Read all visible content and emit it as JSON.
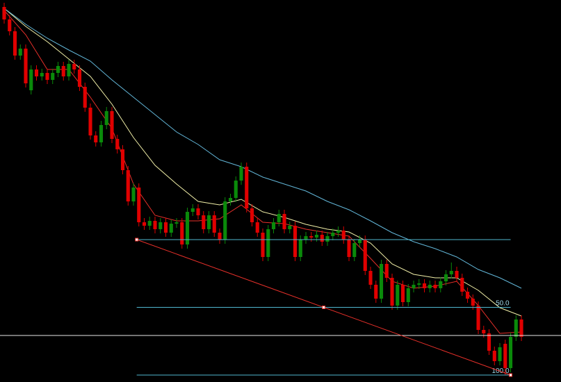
{
  "chart_data": {
    "type": "candlestick",
    "xlim": [
      -0.774,
      103.35
    ],
    "ylim": [
      0,
      550
    ],
    "up_color": "#0a8a0a",
    "down_color": "#e00000",
    "open": [
      540,
      522,
      505,
      470,
      480,
      420,
      450,
      440,
      445,
      435,
      445,
      455,
      440,
      458,
      450,
      425,
      395,
      355,
      345,
      370,
      390,
      350,
      335,
      305,
      260,
      280,
      230,
      225,
      232,
      220,
      230,
      215,
      228,
      230,
      198,
      245,
      250,
      240,
      220,
      240,
      215,
      205,
      260,
      265,
      290,
      310,
      250,
      230,
      215,
      180,
      220,
      230,
      242,
      220,
      225,
      180,
      205,
      210,
      208,
      212,
      202,
      210,
      215,
      218,
      205,
      180,
      200,
      205,
      160,
      140,
      120,
      170,
      150,
      110,
      140,
      115,
      135,
      140,
      142,
      135,
      140,
      135,
      145,
      155,
      160,
      150,
      130,
      120,
      110,
      75,
      70,
      45,
      30,
      55,
      20,
      65,
      90
    ],
    "high": [
      546,
      528,
      511,
      486,
      486,
      456,
      456,
      451,
      451,
      451,
      461,
      461,
      464,
      464,
      456,
      431,
      401,
      361,
      376,
      396,
      396,
      356,
      341,
      311,
      286,
      286,
      236,
      238,
      238,
      236,
      236,
      234,
      236,
      236,
      251,
      256,
      256,
      246,
      246,
      246,
      221,
      266,
      271,
      296,
      316,
      316,
      256,
      236,
      221,
      226,
      236,
      248,
      248,
      231,
      231,
      211,
      216,
      216,
      218,
      218,
      216,
      221,
      224,
      224,
      211,
      206,
      211,
      211,
      166,
      146,
      176,
      176,
      156,
      146,
      146,
      141,
      146,
      148,
      148,
      146,
      146,
      151,
      161,
      172,
      166,
      156,
      136,
      126,
      116,
      81,
      76,
      51,
      56,
      61,
      71,
      96,
      96
    ],
    "low": [
      516,
      499,
      464,
      464,
      424,
      414,
      434,
      434,
      429,
      429,
      439,
      434,
      434,
      444,
      419,
      389,
      349,
      339,
      339,
      364,
      344,
      329,
      299,
      254,
      254,
      224,
      219,
      219,
      214,
      214,
      209,
      209,
      222,
      192,
      192,
      239,
      234,
      214,
      214,
      209,
      199,
      199,
      254,
      259,
      284,
      244,
      224,
      209,
      174,
      174,
      214,
      224,
      214,
      214,
      174,
      174,
      199,
      202,
      202,
      196,
      196,
      204,
      209,
      199,
      174,
      174,
      194,
      154,
      134,
      114,
      114,
      144,
      104,
      104,
      109,
      109,
      129,
      134,
      129,
      129,
      129,
      129,
      139,
      149,
      144,
      124,
      114,
      104,
      69,
      64,
      39,
      24,
      24,
      10,
      14,
      59,
      59
    ],
    "close": [
      522,
      505,
      470,
      480,
      430,
      450,
      440,
      445,
      435,
      445,
      455,
      440,
      458,
      450,
      425,
      395,
      355,
      345,
      370,
      390,
      350,
      335,
      305,
      260,
      280,
      230,
      225,
      232,
      220,
      230,
      215,
      228,
      230,
      198,
      245,
      250,
      240,
      220,
      240,
      215,
      205,
      260,
      265,
      290,
      310,
      250,
      230,
      215,
      180,
      220,
      230,
      242,
      220,
      225,
      180,
      205,
      210,
      208,
      212,
      202,
      210,
      215,
      218,
      205,
      180,
      200,
      205,
      160,
      140,
      120,
      170,
      150,
      110,
      140,
      115,
      135,
      140,
      142,
      135,
      140,
      135,
      145,
      155,
      160,
      150,
      130,
      120,
      110,
      75,
      70,
      45,
      30,
      50,
      20,
      65,
      90,
      65
    ],
    "series": [
      {
        "color": "#e8302a",
        "x": [
          0,
          4,
          8,
          12,
          16,
          20,
          24,
          28,
          32,
          36,
          40,
          44,
          48,
          52,
          56,
          60,
          64,
          68,
          72,
          76,
          80,
          84,
          88,
          92,
          96
        ],
        "values": [
          535,
          500,
          450,
          450,
          410,
          365,
          285,
          240,
          232,
          232,
          235,
          255,
          230,
          228,
          220,
          215,
          210,
          178,
          145,
          135,
          138,
          145,
          110,
          70,
          72
        ]
      },
      {
        "color": "#f2f0a8",
        "x": [
          0,
          4,
          8,
          12,
          16,
          20,
          24,
          28,
          32,
          36,
          40,
          44,
          48,
          52,
          56,
          60,
          64,
          68,
          72,
          76,
          80,
          84,
          88,
          92,
          96
        ],
        "values": [
          538,
          512,
          490,
          465,
          440,
          400,
          352,
          312,
          285,
          260,
          255,
          263,
          245,
          237,
          227,
          220,
          216,
          200,
          170,
          155,
          150,
          150,
          132,
          107,
          95
        ]
      },
      {
        "color": "#62b6d8",
        "x": [
          0,
          4,
          8,
          12,
          16,
          20,
          24,
          28,
          32,
          36,
          40,
          44,
          48,
          52,
          56,
          60,
          64,
          68,
          72,
          76,
          80,
          84,
          88,
          92,
          96
        ],
        "values": [
          538,
          515,
          495,
          478,
          462,
          435,
          410,
          385,
          360,
          342,
          320,
          310,
          295,
          285,
          275,
          260,
          248,
          232,
          215,
          202,
          192,
          180,
          162,
          150,
          135
        ]
      }
    ],
    "price_line": 67,
    "price_line_color": "#e8e8e8",
    "fibonacci": {
      "start": {
        "x": 24.6,
        "price": 205
      },
      "end": {
        "x": 94,
        "price": 10
      },
      "line_color": "#e8302a",
      "level_color": "#4fb8d0",
      "levels": [
        0,
        {
          "value": 50,
          "label": "50.0"
        },
        {
          "value": 100,
          "label": "100.0"
        }
      ]
    }
  }
}
